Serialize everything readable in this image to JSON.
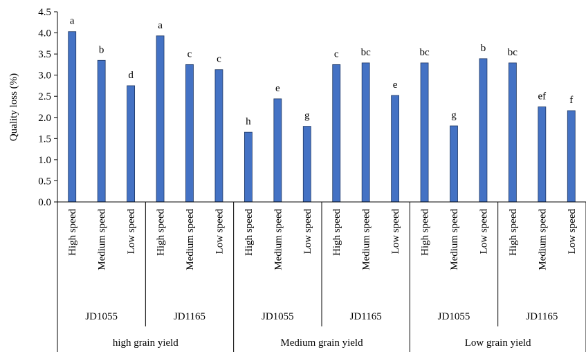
{
  "chart_data": {
    "type": "bar",
    "title": "",
    "xlabel": "",
    "ylabel": "Quality loss (%)",
    "ylim": [
      0,
      4.5
    ],
    "yticks": [
      "0.0",
      "0.5",
      "1.0",
      "1.5",
      "2.0",
      "2.5",
      "3.0",
      "3.5",
      "4.0",
      "4.5"
    ],
    "grid": false,
    "bar_color": "#4472C4",
    "categories": [
      "High speed",
      "Medium speed",
      "Low speed",
      "High speed",
      "Medium speed",
      "Low speed",
      "High speed",
      "Medium speed",
      "Low speed",
      "High speed",
      "Medium speed",
      "Low speed",
      "High speed",
      "Medium speed",
      "Low speed",
      "High speed",
      "Medium speed",
      "Low speed"
    ],
    "values": [
      4.03,
      3.35,
      2.75,
      3.93,
      3.25,
      3.13,
      1.65,
      2.44,
      1.79,
      3.25,
      3.29,
      2.52,
      3.29,
      1.8,
      3.39,
      3.29,
      2.25,
      2.16
    ],
    "bar_labels": [
      "a",
      "b",
      "d",
      "a",
      "c",
      "c",
      "h",
      "e",
      "g",
      "c",
      "bc",
      "e",
      "bc",
      "g",
      "b",
      "bc",
      "ef",
      "f"
    ],
    "harvester_groups": [
      "JD1055",
      "JD1165",
      "JD1055",
      "JD1165",
      "JD1055",
      "JD1165"
    ],
    "yield_groups": [
      "high grain yield",
      "Medium grain yield",
      "Low grain yield"
    ]
  }
}
